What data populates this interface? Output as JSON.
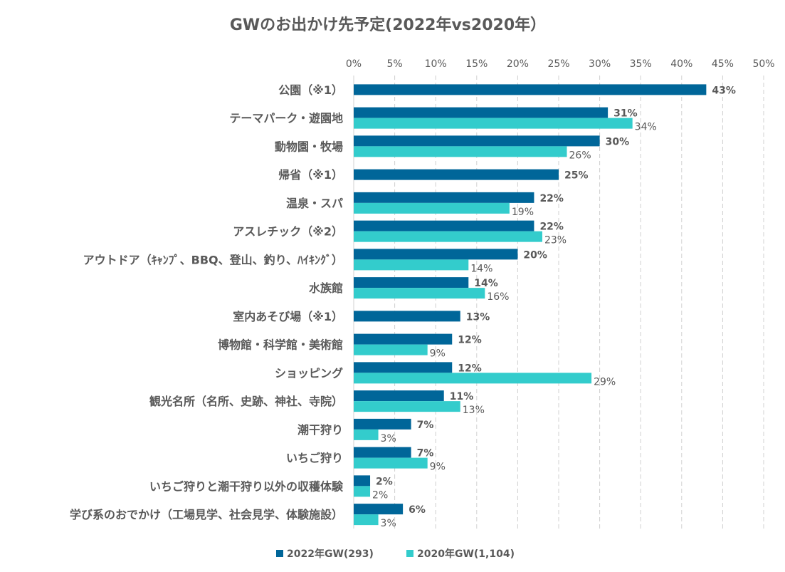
{
  "chart_data": {
    "type": "bar",
    "orientation": "horizontal",
    "title": "GWのお出かけ先予定(2022年vs2020年）",
    "xlim": [
      0,
      50
    ],
    "xticks": [
      "0%",
      "5%",
      "10%",
      "15%",
      "20%",
      "25%",
      "30%",
      "35%",
      "40%",
      "45%",
      "50%"
    ],
    "grid": true,
    "legend": "bottom",
    "categories": [
      "公園（※1）",
      "テーマパーク・遊園地",
      "動物園・牧場",
      "帰省（※1）",
      "温泉・スパ",
      "アスレチック（※2）",
      "アウトドア（ｷｬﾝﾌﾟ、BBQ、登山、釣り、ﾊｲｷﾝｸﾞ）",
      "水族館",
      "室内あそび場（※1）",
      "博物館・科学館・美術館",
      "ショッピング",
      "観光名所（名所、史跡、神社、寺院）",
      "潮干狩り",
      "いちご狩り",
      "いちご狩りと潮干狩り以外の収穫体験",
      "学び系のおでかけ（工場見学、社会見学、体験施設）"
    ],
    "series": [
      {
        "name": "2022年GW(293)",
        "color": "#006699",
        "values": [
          43,
          31,
          30,
          25,
          22,
          22,
          20,
          14,
          13,
          12,
          12,
          11,
          7,
          7,
          2,
          6
        ]
      },
      {
        "name": "2020年GW(1,104)",
        "color": "#33CCCC",
        "values": [
          null,
          34,
          26,
          null,
          19,
          23,
          14,
          16,
          null,
          9,
          29,
          13,
          3,
          9,
          2,
          3
        ]
      }
    ]
  }
}
